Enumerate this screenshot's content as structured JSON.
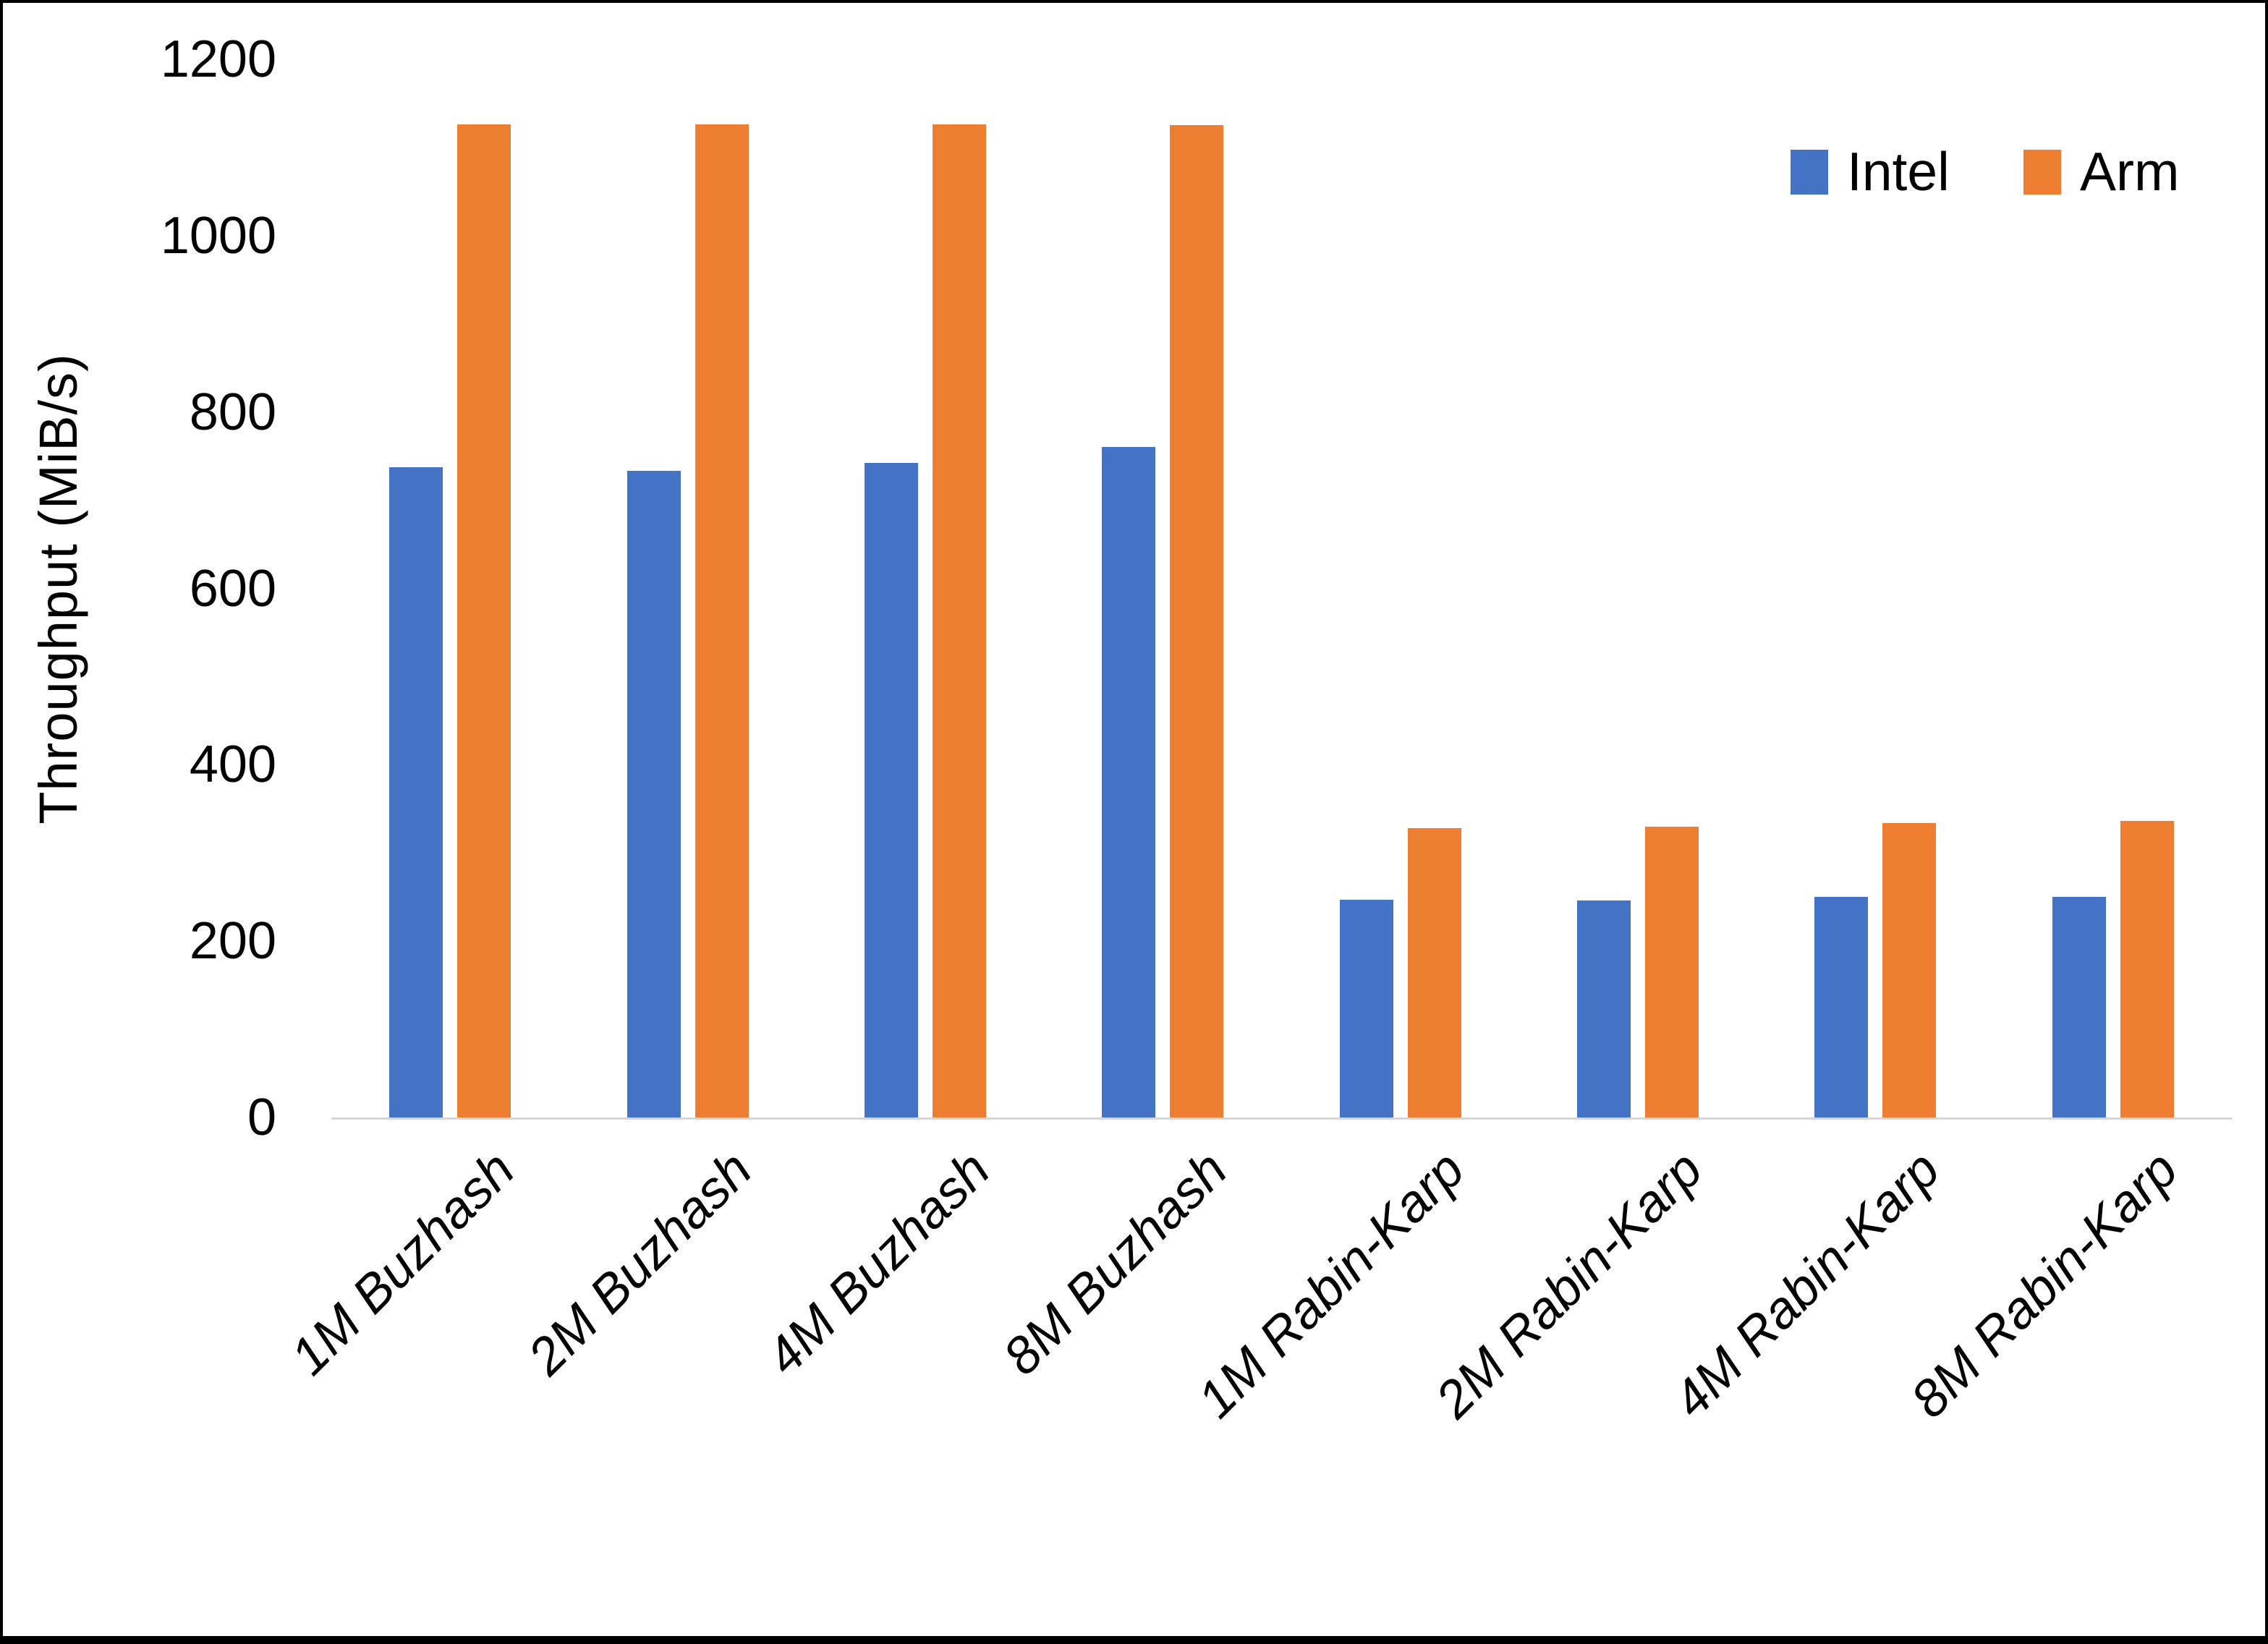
{
  "chart_data": {
    "type": "bar",
    "title": "",
    "xlabel": "",
    "ylabel": "Throughput (MiB/s)",
    "ylim": [
      0,
      1200
    ],
    "yticks": [
      0,
      200,
      400,
      600,
      800,
      1000,
      1200
    ],
    "grid": false,
    "legend_position": "top-right",
    "axis_line_color": "#d6d6d6",
    "categories": [
      "1M Buzhash",
      "2M Buzhash",
      "4M Buzhash",
      "8M Buzhash",
      "1M Rabin-Karp",
      "2M Rabin-Karp",
      "4M Rabin-Karp",
      "8M Rabin-Karp"
    ],
    "series": [
      {
        "name": "Intel",
        "color": "#4472C4",
        "values": [
          737,
          733,
          742,
          760,
          247,
          246,
          250,
          250
        ]
      },
      {
        "name": "Arm",
        "color": "#ED7D31",
        "values": [
          1126,
          1126,
          1126,
          1125,
          328,
          330,
          334,
          336
        ]
      }
    ]
  }
}
